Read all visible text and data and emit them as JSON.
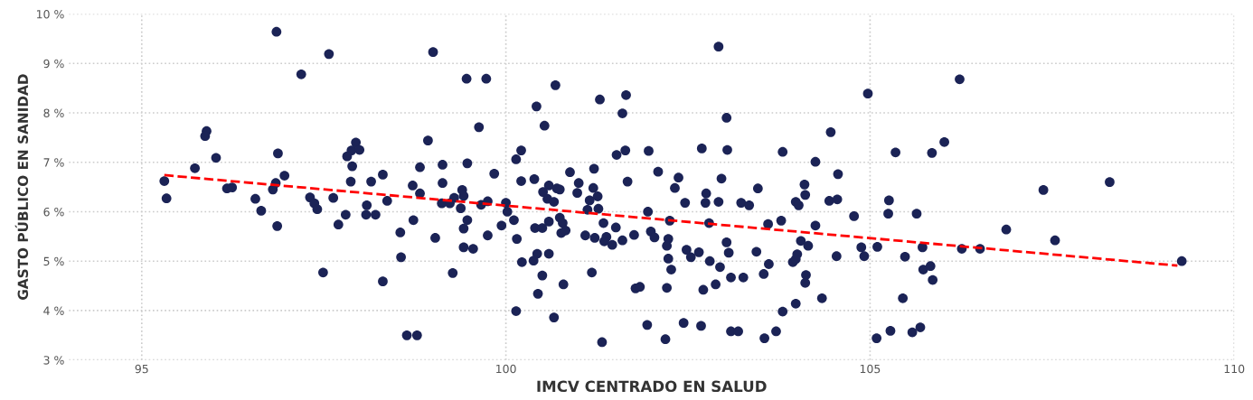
{
  "chart_data": {
    "type": "scatter",
    "xlabel": "IMCV CENTRADO EN SALUD",
    "ylabel": "GASTO PÚBLICO EN SANIDAD",
    "xlim": [
      94,
      110
    ],
    "xticks": [
      95,
      100,
      105,
      110
    ],
    "ylim": [
      3,
      10
    ],
    "yticks": [
      {
        "value": 3,
        "label": "3 %"
      },
      {
        "value": 4,
        "label": "4 %"
      },
      {
        "value": 5,
        "label": "5 %"
      },
      {
        "value": 6,
        "label": "6 %"
      },
      {
        "value": 7,
        "label": "7 %"
      },
      {
        "value": 8,
        "label": "8 %"
      },
      {
        "value": 9,
        "label": "9 %"
      },
      {
        "value": 10,
        "label": "10 %"
      }
    ],
    "grid": true,
    "legend": false,
    "marker": "circle",
    "series": [
      {
        "color": "#1b2356",
        "x": [
          96.85,
          97.57,
          97.19,
          95.89,
          95.87,
          96.02,
          95.73,
          96.87,
          96.96,
          95.31,
          95.34,
          96.17,
          96.24,
          96.56,
          96.64,
          96.84,
          96.8,
          96.86,
          97.31,
          97.37,
          97.41,
          97.63,
          97.8,
          97.7,
          97.49,
          97.94,
          97.88,
          97.99,
          97.82,
          97.89,
          97.87,
          99.0,
          99.46,
          99.73,
          99.63,
          98.93,
          98.82,
          99.13,
          99.47,
          99.84,
          98.15,
          98.31,
          98.72,
          99.13,
          98.82,
          99.4,
          99.42,
          99.29,
          98.37,
          98.09,
          98.08,
          98.21,
          99.12,
          99.23,
          99.38,
          99.66,
          99.75,
          100.0,
          100.02,
          100.11,
          99.94,
          99.47,
          99.42,
          98.73,
          98.55,
          99.03,
          99.75,
          99.42,
          99.55,
          100.15,
          98.56,
          98.31,
          99.27,
          98.64,
          98.78,
          100.14,
          100.22,
          100.42,
          100.53,
          100.68,
          100.14,
          100.21,
          100.21,
          100.39,
          100.59,
          100.51,
          100.7,
          100.74,
          100.57,
          100.66,
          100.88,
          101.0,
          100.98,
          101.21,
          101.2,
          101.15,
          101.26,
          101.12,
          101.27,
          100.4,
          100.5,
          100.59,
          100.74,
          100.78,
          100.76,
          100.82,
          100.43,
          100.59,
          100.38,
          100.5,
          100.79,
          100.44,
          100.66,
          101.29,
          101.65,
          101.6,
          101.52,
          101.64,
          101.67,
          101.96,
          101.34,
          101.51,
          101.09,
          101.22,
          101.38,
          101.35,
          101.46,
          101.6,
          101.76,
          101.18,
          101.78,
          101.84,
          101.95,
          101.99,
          101.94,
          101.32,
          102.92,
          104.97,
          103.03,
          104.46,
          102.69,
          103.04,
          103.8,
          104.25,
          105.35,
          105.85,
          106.02,
          102.09,
          102.37,
          102.32,
          102.96,
          102.75,
          103.46,
          102.46,
          102.74,
          102.92,
          103.23,
          103.34,
          103.98,
          104.02,
          104.1,
          104.11,
          104.44,
          104.55,
          104.56,
          105.26,
          105.25,
          105.64,
          104.78,
          102.25,
          102.79,
          103.6,
          103.78,
          104.25,
          102.04,
          102.23,
          102.21,
          103.03,
          102.48,
          102.54,
          102.65,
          103.06,
          103.44,
          102.23,
          102.27,
          102.8,
          102.94,
          103.61,
          103.54,
          104.05,
          104.15,
          104.0,
          103.94,
          103.98,
          104.12,
          104.11,
          104.54,
          104.88,
          104.92,
          105.1,
          105.48,
          105.72,
          105.73,
          105.83,
          105.86,
          102.21,
          102.71,
          102.88,
          103.09,
          103.26,
          104.34,
          103.98,
          103.8,
          105.45,
          102.44,
          102.68,
          102.19,
          103.09,
          103.19,
          103.55,
          103.71,
          105.09,
          105.28,
          105.58,
          105.69,
          106.23,
          107.38,
          108.29,
          106.87,
          107.54,
          106.26,
          106.51,
          109.28
        ],
        "values": [
          9.64,
          9.19,
          8.78,
          7.63,
          7.53,
          7.09,
          6.88,
          7.18,
          6.73,
          6.62,
          6.27,
          6.47,
          6.49,
          6.26,
          6.02,
          6.58,
          6.45,
          5.71,
          6.29,
          6.17,
          6.05,
          6.28,
          5.94,
          5.74,
          4.77,
          7.4,
          7.24,
          7.25,
          7.12,
          6.92,
          6.61,
          9.23,
          8.69,
          8.69,
          7.71,
          7.44,
          6.9,
          6.95,
          6.98,
          6.77,
          6.61,
          6.75,
          6.53,
          6.58,
          6.37,
          6.44,
          6.32,
          6.28,
          6.22,
          6.13,
          5.94,
          5.94,
          6.17,
          6.17,
          6.07,
          6.14,
          6.21,
          6.18,
          6.0,
          5.83,
          5.72,
          5.83,
          5.66,
          5.83,
          5.58,
          5.47,
          5.52,
          5.28,
          5.25,
          5.45,
          5.08,
          4.59,
          4.76,
          3.5,
          3.5,
          3.99,
          4.98,
          8.13,
          7.74,
          8.56,
          7.06,
          7.24,
          6.62,
          6.66,
          6.53,
          6.4,
          6.47,
          6.45,
          6.26,
          6.2,
          6.8,
          6.58,
          6.38,
          6.87,
          6.48,
          6.23,
          6.31,
          6.04,
          6.06,
          5.67,
          5.67,
          5.8,
          5.88,
          5.77,
          5.57,
          5.62,
          5.15,
          5.15,
          5.01,
          4.71,
          4.53,
          4.34,
          3.86,
          8.27,
          8.36,
          7.99,
          7.15,
          7.24,
          6.61,
          7.23,
          5.77,
          5.68,
          5.52,
          5.47,
          5.49,
          5.4,
          5.33,
          5.42,
          5.53,
          4.77,
          4.45,
          4.48,
          6.0,
          5.6,
          3.71,
          3.36,
          9.34,
          8.39,
          7.9,
          7.61,
          7.28,
          7.25,
          7.21,
          7.01,
          7.2,
          7.19,
          7.41,
          6.81,
          6.69,
          6.48,
          6.67,
          6.37,
          6.47,
          6.18,
          6.18,
          6.2,
          6.18,
          6.13,
          6.2,
          6.13,
          6.55,
          6.34,
          6.22,
          6.25,
          6.76,
          6.23,
          5.96,
          5.96,
          5.91,
          5.82,
          5.77,
          5.75,
          5.82,
          5.72,
          5.48,
          5.45,
          5.31,
          5.38,
          5.23,
          5.08,
          5.18,
          5.17,
          5.19,
          5.05,
          4.83,
          5.0,
          4.88,
          4.94,
          4.74,
          5.41,
          5.31,
          5.14,
          4.98,
          5.04,
          4.72,
          4.56,
          5.1,
          5.28,
          5.1,
          5.29,
          5.09,
          5.28,
          4.83,
          4.9,
          4.62,
          4.46,
          4.42,
          4.53,
          4.67,
          4.67,
          4.25,
          4.14,
          3.98,
          4.25,
          3.75,
          3.69,
          3.42,
          3.58,
          3.58,
          3.44,
          3.58,
          3.44,
          3.59,
          3.56,
          3.66,
          8.68,
          6.44,
          6.6,
          5.64,
          5.42,
          5.25,
          5.25,
          5.0
        ]
      },
      {
        "type": "line",
        "color": "#ff0000",
        "line_style": "dashed",
        "marker": "none",
        "x": [
          95.31,
          109.22
        ],
        "values": [
          6.74,
          4.91
        ]
      }
    ]
  }
}
